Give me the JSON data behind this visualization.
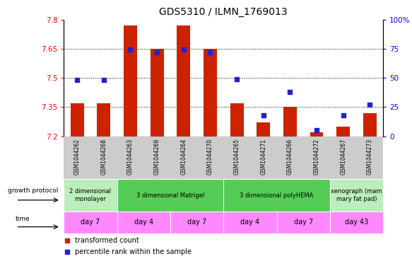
{
  "title": "GDS5310 / ILMN_1769013",
  "samples": [
    "GSM1044262",
    "GSM1044268",
    "GSM1044263",
    "GSM1044269",
    "GSM1044264",
    "GSM1044270",
    "GSM1044265",
    "GSM1044271",
    "GSM1044266",
    "GSM1044272",
    "GSM1044267",
    "GSM1044273"
  ],
  "transformed_count": [
    7.37,
    7.37,
    7.77,
    7.65,
    7.77,
    7.65,
    7.37,
    7.27,
    7.35,
    7.22,
    7.25,
    7.32
  ],
  "percentile_rank": [
    48,
    48,
    74,
    72,
    74,
    72,
    49,
    18,
    38,
    5,
    18,
    27
  ],
  "ylim_left": [
    7.2,
    7.8
  ],
  "ylim_right": [
    0,
    100
  ],
  "yticks_left": [
    7.2,
    7.35,
    7.5,
    7.65,
    7.8
  ],
  "yticks_right": [
    0,
    25,
    50,
    75,
    100
  ],
  "bar_color": "#cc2200",
  "dot_color": "#2222cc",
  "bar_bottom": 7.2,
  "grid_lines": [
    7.35,
    7.5,
    7.65
  ],
  "growth_protocol_groups": [
    {
      "label": "2 dimensional\nmonolayer",
      "start": 0,
      "end": 2,
      "color": "#bbeebb"
    },
    {
      "label": "3 dimensional Matrigel",
      "start": 2,
      "end": 6,
      "color": "#55cc55"
    },
    {
      "label": "3 dimensional polyHEMA",
      "start": 6,
      "end": 10,
      "color": "#55cc55"
    },
    {
      "label": "xenograph (mam\nmary fat pad)",
      "start": 10,
      "end": 12,
      "color": "#bbeebb"
    }
  ],
  "time_groups": [
    {
      "label": "day 7",
      "start": 0,
      "end": 2
    },
    {
      "label": "day 4",
      "start": 2,
      "end": 4
    },
    {
      "label": "day 7",
      "start": 4,
      "end": 6
    },
    {
      "label": "day 4",
      "start": 6,
      "end": 8
    },
    {
      "label": "day 7",
      "start": 8,
      "end": 10
    },
    {
      "label": "day 43",
      "start": 10,
      "end": 12
    }
  ],
  "time_color": "#ff88ff",
  "xtick_bg_color": "#cccccc",
  "legend_items": [
    {
      "label": "transformed count",
      "color": "#cc2200"
    },
    {
      "label": "percentile rank within the sample",
      "color": "#2222cc"
    }
  ],
  "left_labels": [
    "growth protocol",
    "time"
  ]
}
